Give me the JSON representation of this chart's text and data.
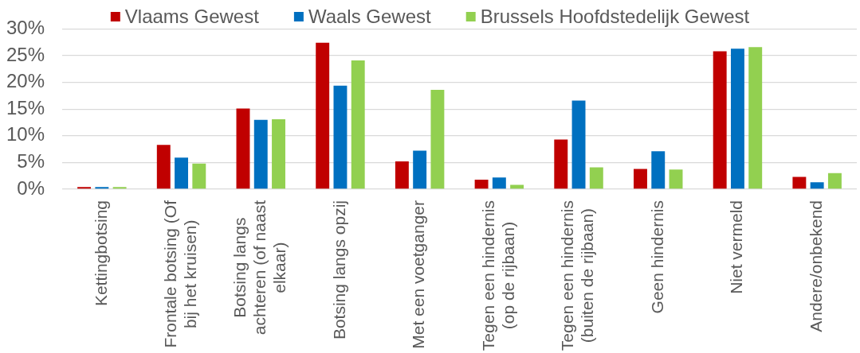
{
  "chart_data": {
    "type": "bar",
    "categories": [
      "Kettingbotsing",
      "Frontale botsing (Of bij het kruisen)",
      "Botsing langs achteren (of naast elkaar)",
      "Botsing langs opzij",
      "Met een voetganger",
      "Tegen een hindernis (op de rijbaan)",
      "Tegen een hindernis (buiten de rijbaan)",
      "Geen hindernis",
      "Niet vermeld",
      "Andere/onbekend"
    ],
    "series": [
      {
        "name": "Vlaams Gewest",
        "color": "#c00000",
        "values": [
          0.4,
          8.3,
          15.1,
          27.4,
          5.2,
          1.8,
          9.3,
          3.8,
          25.8,
          2.3
        ]
      },
      {
        "name": "Waals Gewest",
        "color": "#0070c0",
        "values": [
          0.4,
          5.9,
          13.0,
          19.4,
          7.2,
          2.2,
          16.6,
          7.1,
          26.3,
          1.3
        ]
      },
      {
        "name": "Brussels Hoofdstedelijk Gewest",
        "color": "#92d050",
        "values": [
          0.4,
          4.8,
          13.1,
          24.1,
          18.6,
          0.8,
          4.1,
          3.7,
          26.6,
          3.0
        ]
      }
    ],
    "ylim": [
      0,
      30
    ],
    "yticks": [
      {
        "value": 0,
        "label": "0%"
      },
      {
        "value": 5,
        "label": "5%"
      },
      {
        "value": 10,
        "label": "10%"
      },
      {
        "value": 15,
        "label": "15%"
      },
      {
        "value": 20,
        "label": "20%"
      },
      {
        "value": 25,
        "label": "25%"
      },
      {
        "value": 30,
        "label": "30%"
      }
    ],
    "grid": "y",
    "legend": "top"
  }
}
